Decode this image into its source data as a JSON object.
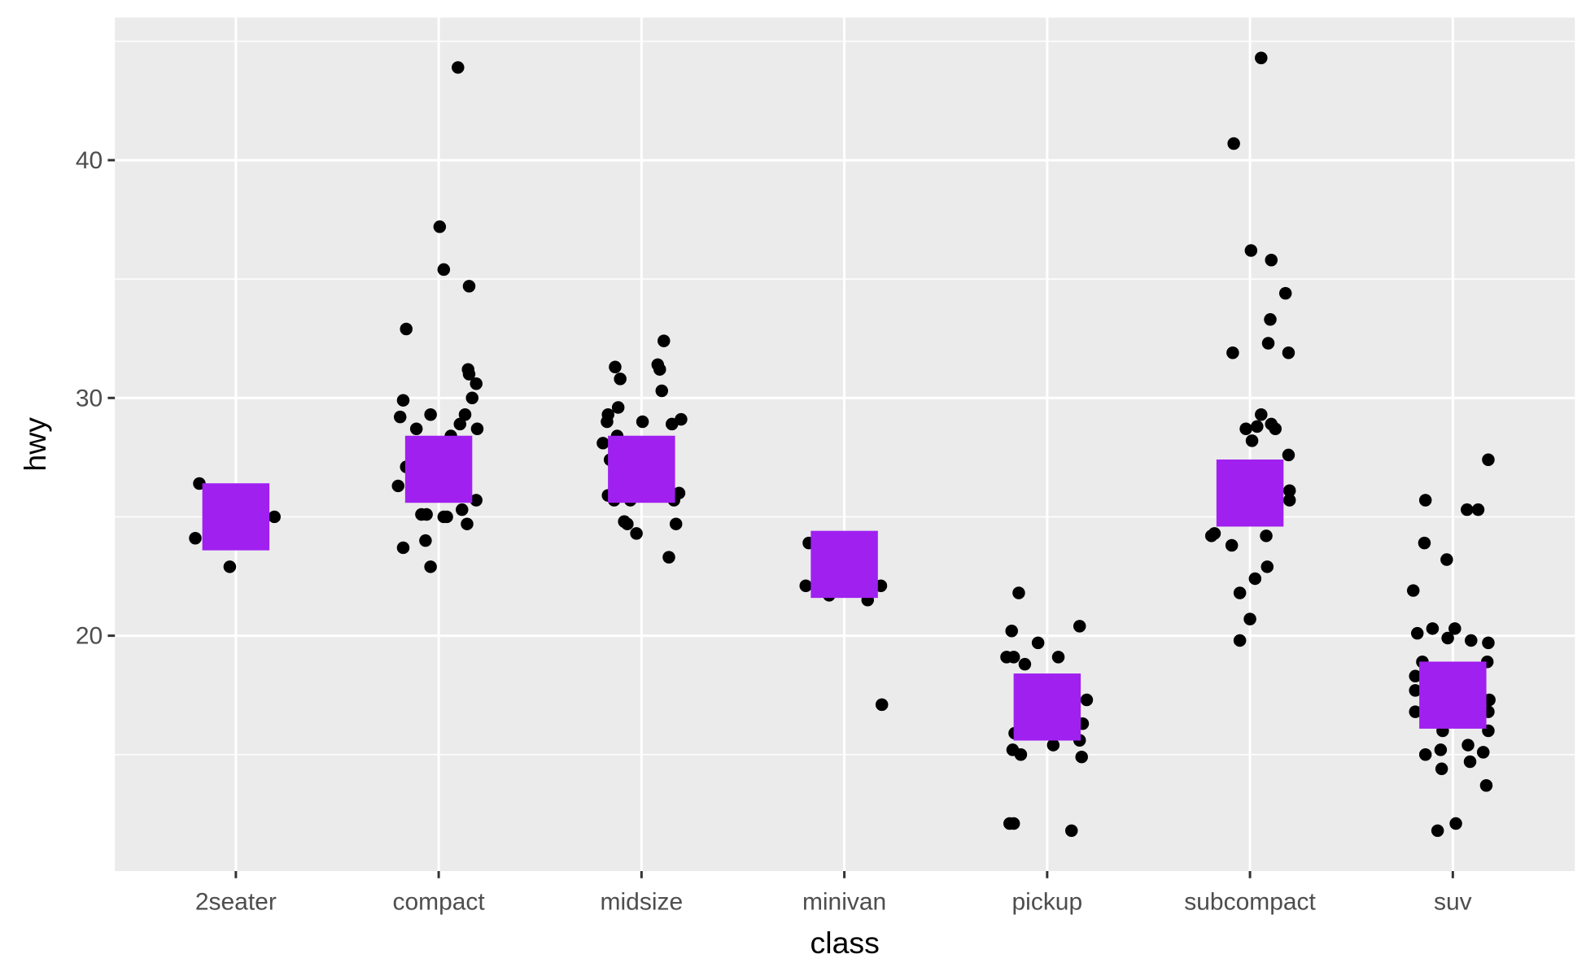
{
  "chart_data": {
    "type": "scatter",
    "title": "",
    "xlabel": "class",
    "ylabel": "hwy",
    "categories": [
      "2seater",
      "compact",
      "midsize",
      "minivan",
      "pickup",
      "subcompact",
      "suv"
    ],
    "ylim": [
      10.1,
      46
    ],
    "yticks": [
      20,
      30,
      40
    ],
    "ytick_labels": [
      "20",
      "30",
      "40"
    ],
    "grid": true,
    "colors": {
      "panel": "#ebebeb",
      "grid": "#ffffff",
      "points": "#000000",
      "median_marker": "#a020f0"
    },
    "median_markers": {
      "shape": "square",
      "values": [
        25,
        27,
        27,
        23,
        17,
        26,
        17.5
      ]
    },
    "jittered_points": [
      {
        "class": "2seater",
        "points": [
          [
            -0.18,
            26.4
          ],
          [
            -0.2,
            24.1
          ],
          [
            -0.03,
            22.9
          ],
          [
            0.19,
            25
          ]
        ]
      },
      {
        "class": "compact",
        "points": [
          [
            0.095,
            43.9
          ],
          [
            0.005,
            37.2
          ],
          [
            0.025,
            35.4
          ],
          [
            0.15,
            34.7
          ],
          [
            -0.16,
            32.9
          ],
          [
            0.145,
            31.2
          ],
          [
            0.15,
            31
          ],
          [
            0.185,
            30.6
          ],
          [
            0.165,
            30
          ],
          [
            -0.175,
            29.9
          ],
          [
            -0.19,
            29.2
          ],
          [
            -0.04,
            29.3
          ],
          [
            0.13,
            29.3
          ],
          [
            -0.11,
            28.7
          ],
          [
            0.105,
            28.9
          ],
          [
            0.19,
            28.7
          ],
          [
            0.06,
            28.4
          ],
          [
            -0.16,
            27.1
          ],
          [
            -0.2,
            26.3
          ],
          [
            0.185,
            25.7
          ],
          [
            -0.085,
            25.1
          ],
          [
            -0.06,
            25.1
          ],
          [
            0.115,
            25.3
          ],
          [
            0.04,
            25
          ],
          [
            0.025,
            25
          ],
          [
            0.14,
            24.7
          ],
          [
            -0.065,
            24
          ],
          [
            -0.175,
            23.7
          ],
          [
            -0.04,
            22.9
          ]
        ]
      },
      {
        "class": "midsize",
        "points": [
          [
            0.11,
            32.4
          ],
          [
            -0.13,
            31.3
          ],
          [
            0.08,
            31.4
          ],
          [
            0.09,
            31.2
          ],
          [
            -0.105,
            30.8
          ],
          [
            0.1,
            30.3
          ],
          [
            -0.115,
            29.6
          ],
          [
            -0.165,
            29.3
          ],
          [
            -0.17,
            29
          ],
          [
            0.005,
            29
          ],
          [
            0.195,
            29.1
          ],
          [
            0.15,
            28.9
          ],
          [
            -0.12,
            28.4
          ],
          [
            -0.19,
            28.1
          ],
          [
            -0.155,
            27.4
          ],
          [
            0.185,
            26
          ],
          [
            -0.165,
            25.9
          ],
          [
            -0.135,
            25.7
          ],
          [
            -0.055,
            25.7
          ],
          [
            0.16,
            25.7
          ],
          [
            -0.085,
            24.8
          ],
          [
            -0.07,
            24.7
          ],
          [
            0.17,
            24.7
          ],
          [
            -0.025,
            24.3
          ],
          [
            0.135,
            23.3
          ]
        ]
      },
      {
        "class": "minivan",
        "points": [
          [
            -0.175,
            23.9
          ],
          [
            -0.19,
            22.1
          ],
          [
            -0.075,
            21.7
          ],
          [
            0.18,
            22.1
          ],
          [
            0.115,
            21.5
          ],
          [
            0.185,
            17.1
          ]
        ]
      },
      {
        "class": "pickup",
        "points": [
          [
            -0.14,
            21.8
          ],
          [
            0.16,
            20.4
          ],
          [
            -0.175,
            20.2
          ],
          [
            -0.045,
            19.7
          ],
          [
            -0.2,
            19.1
          ],
          [
            -0.165,
            19.1
          ],
          [
            0.055,
            19.1
          ],
          [
            -0.11,
            18.8
          ],
          [
            0.195,
            17.3
          ],
          [
            0.175,
            16.3
          ],
          [
            -0.16,
            15.9
          ],
          [
            0.16,
            15.6
          ],
          [
            0.03,
            15.4
          ],
          [
            -0.17,
            15.2
          ],
          [
            -0.13,
            15
          ],
          [
            0.17,
            14.9
          ],
          [
            -0.185,
            12.1
          ],
          [
            -0.165,
            12.1
          ],
          [
            0.12,
            11.8
          ]
        ]
      },
      {
        "class": "subcompact",
        "points": [
          [
            0.055,
            44.3
          ],
          [
            -0.08,
            40.7
          ],
          [
            0.005,
            36.2
          ],
          [
            0.105,
            35.8
          ],
          [
            0.175,
            34.4
          ],
          [
            0.1,
            33.3
          ],
          [
            0.09,
            32.3
          ],
          [
            -0.085,
            31.9
          ],
          [
            0.19,
            31.9
          ],
          [
            0.055,
            29.3
          ],
          [
            0.035,
            28.8
          ],
          [
            0.105,
            28.9
          ],
          [
            -0.02,
            28.7
          ],
          [
            0.125,
            28.7
          ],
          [
            0.01,
            28.2
          ],
          [
            0.19,
            27.6
          ],
          [
            0.195,
            26.1
          ],
          [
            0.195,
            25.7
          ],
          [
            -0.19,
            24.2
          ],
          [
            -0.175,
            24.3
          ],
          [
            0.08,
            24.2
          ],
          [
            -0.09,
            23.8
          ],
          [
            0.085,
            22.9
          ],
          [
            0.025,
            22.4
          ],
          [
            -0.05,
            21.8
          ],
          [
            0,
            20.7
          ],
          [
            -0.05,
            19.8
          ]
        ]
      },
      {
        "class": "suv",
        "points": [
          [
            0.175,
            27.4
          ],
          [
            -0.135,
            25.7
          ],
          [
            0.07,
            25.3
          ],
          [
            0.125,
            25.3
          ],
          [
            -0.14,
            23.9
          ],
          [
            -0.03,
            23.2
          ],
          [
            -0.195,
            21.9
          ],
          [
            -0.175,
            20.1
          ],
          [
            -0.1,
            20.3
          ],
          [
            0.01,
            20.3
          ],
          [
            -0.025,
            19.9
          ],
          [
            0.09,
            19.8
          ],
          [
            0.175,
            19.7
          ],
          [
            -0.15,
            18.9
          ],
          [
            0.17,
            18.9
          ],
          [
            0.13,
            18.5
          ],
          [
            -0.185,
            18.3
          ],
          [
            -0.185,
            17.7
          ],
          [
            0.18,
            17.3
          ],
          [
            -0.185,
            16.8
          ],
          [
            0.175,
            16.8
          ],
          [
            -0.05,
            16
          ],
          [
            0.175,
            16
          ],
          [
            -0.135,
            15
          ],
          [
            -0.06,
            15.2
          ],
          [
            0.075,
            15.4
          ],
          [
            0.15,
            15.1
          ],
          [
            0.085,
            14.7
          ],
          [
            -0.055,
            14.4
          ],
          [
            0.165,
            13.7
          ],
          [
            0.015,
            12.1
          ],
          [
            -0.075,
            11.8
          ]
        ]
      }
    ]
  }
}
